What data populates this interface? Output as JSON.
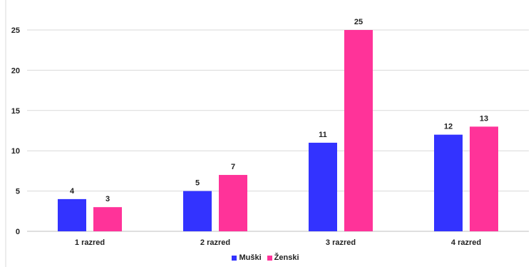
{
  "chart_data": {
    "type": "bar",
    "categories": [
      "1 razred",
      "2 razred",
      "3 razred",
      "4 razred"
    ],
    "series": [
      {
        "name": "Muški",
        "color": "#3333ff",
        "values": [
          4,
          5,
          11,
          12
        ]
      },
      {
        "name": "Ženski",
        "color": "#ff3399",
        "values": [
          3,
          7,
          25,
          13
        ]
      }
    ],
    "title": "",
    "xlabel": "",
    "ylabel": "",
    "ylim": [
      0,
      25
    ],
    "yticks": [
      0,
      5,
      10,
      15,
      20,
      25
    ],
    "grid": true,
    "legend_position": "bottom"
  }
}
